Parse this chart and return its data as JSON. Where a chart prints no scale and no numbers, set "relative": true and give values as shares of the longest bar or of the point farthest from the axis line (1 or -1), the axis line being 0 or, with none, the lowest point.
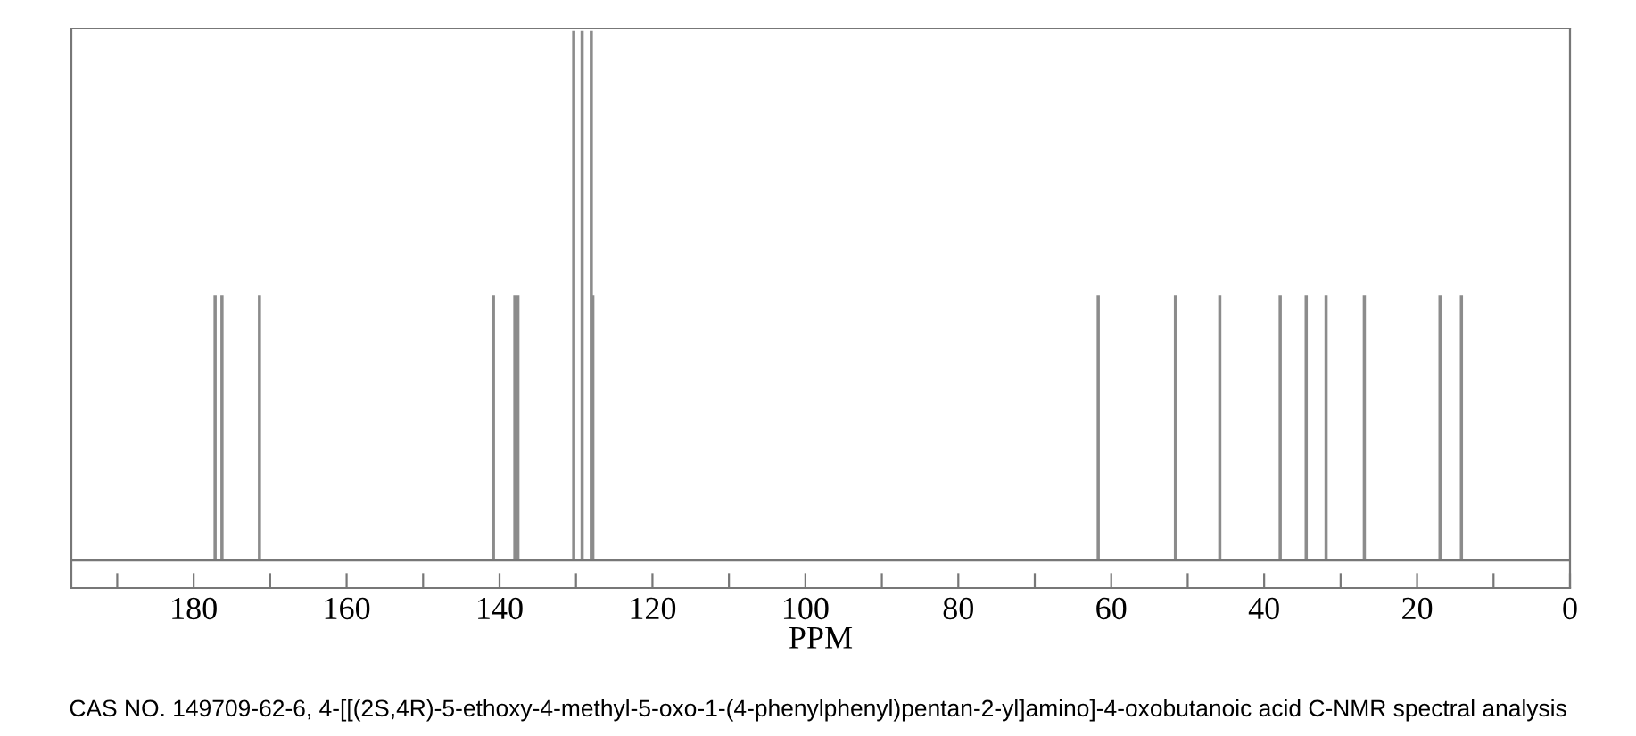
{
  "chart_data": {
    "type": "bar",
    "relative": true,
    "x": [
      177.2,
      176.3,
      171.4,
      140.8,
      138.0,
      137.6,
      130.3,
      129.2,
      128.0,
      127.8,
      61.7,
      51.6,
      45.8,
      37.9,
      34.5,
      31.9,
      26.9,
      17.0,
      14.2
    ],
    "values": [
      0.5,
      0.5,
      0.5,
      0.5,
      0.5,
      0.5,
      1,
      1,
      1,
      0.5,
      0.5,
      0.5,
      0.5,
      0.5,
      0.5,
      0.5,
      0.5,
      0.5,
      0.5
    ],
    "color": "#8c8c8c",
    "xlabel": "PPM",
    "xlim": [
      196,
      0
    ],
    "xticks": [
      {
        "value": 190,
        "label": null
      },
      180,
      {
        "value": 170,
        "label": null
      },
      160,
      {
        "value": 150,
        "label": null
      },
      140,
      {
        "value": 130,
        "label": null
      },
      120,
      {
        "value": 110,
        "label": null
      },
      100,
      {
        "value": 90,
        "label": null
      },
      80,
      {
        "value": 70,
        "label": null
      },
      60,
      {
        "value": 50,
        "label": null
      },
      40,
      {
        "value": 30,
        "label": null
      },
      20,
      {
        "value": 10,
        "label": null
      },
      0
    ],
    "tick_labels": "x",
    "grid": false,
    "annotations": [
      "CAS NO. 149709-62-6, 4-[[(2S,4R)-5-ethoxy-4-methyl-5-oxo-1-(4-phenylphenyl)pentan-2-yl]amino]-4-oxobutanoic acid C-NMR spectral analysis"
    ]
  }
}
